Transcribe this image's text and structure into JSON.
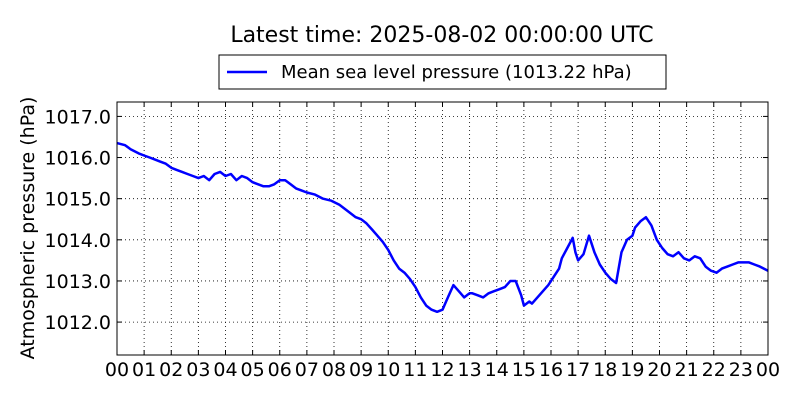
{
  "chart_data": {
    "type": "line",
    "title": "Latest time: 2025-08-02 00:00:00 UTC",
    "xlabel": "",
    "ylabel": "Atmospheric pressure (hPa)",
    "x_ticks": [
      "00",
      "01",
      "02",
      "03",
      "04",
      "05",
      "06",
      "07",
      "08",
      "09",
      "10",
      "11",
      "12",
      "13",
      "14",
      "15",
      "16",
      "17",
      "18",
      "19",
      "20",
      "21",
      "22",
      "23",
      "00"
    ],
    "y_ticks": [
      "1012.0",
      "1013.0",
      "1014.0",
      "1015.0",
      "1016.0",
      "1017.0"
    ],
    "xlim": [
      0,
      24
    ],
    "ylim": [
      1011.2,
      1017.35
    ],
    "grid": true,
    "legend_position": "top-center (above plot)",
    "series": [
      {
        "name": "Mean sea level pressure (1013.22 hPa)",
        "color": "#0000ff",
        "x": [
          0.0,
          0.3,
          0.5,
          0.8,
          1.0,
          1.2,
          1.4,
          1.6,
          1.8,
          2.0,
          2.2,
          2.4,
          2.6,
          2.8,
          3.0,
          3.2,
          3.4,
          3.6,
          3.8,
          4.0,
          4.2,
          4.4,
          4.6,
          4.8,
          5.0,
          5.2,
          5.4,
          5.6,
          5.8,
          6.0,
          6.2,
          6.4,
          6.6,
          6.8,
          7.0,
          7.3,
          7.6,
          7.9,
          8.2,
          8.5,
          8.8,
          9.0,
          9.2,
          9.4,
          9.6,
          9.8,
          10.0,
          10.2,
          10.4,
          10.6,
          10.8,
          11.0,
          11.2,
          11.4,
          11.6,
          11.8,
          12.0,
          12.2,
          12.4,
          12.6,
          12.8,
          12.9,
          13.0,
          13.1,
          13.3,
          13.5,
          13.7,
          13.9,
          14.1,
          14.3,
          14.5,
          14.7,
          14.9,
          15.0,
          15.2,
          15.3,
          15.5,
          15.7,
          15.9,
          16.1,
          16.3,
          16.4,
          16.6,
          16.8,
          16.9,
          17.0,
          17.2,
          17.4,
          17.6,
          17.8,
          18.0,
          18.2,
          18.4,
          18.6,
          18.8,
          19.0,
          19.1,
          19.3,
          19.5,
          19.7,
          19.9,
          20.1,
          20.3,
          20.5,
          20.7,
          20.9,
          21.1,
          21.3,
          21.5,
          21.7,
          21.9,
          22.1,
          22.3,
          22.5,
          22.7,
          22.9,
          23.1,
          23.3,
          23.5,
          23.7,
          24.0
        ],
        "y": [
          1016.35,
          1016.3,
          1016.2,
          1016.1,
          1016.05,
          1016.0,
          1015.95,
          1015.9,
          1015.85,
          1015.75,
          1015.7,
          1015.65,
          1015.6,
          1015.55,
          1015.5,
          1015.55,
          1015.45,
          1015.6,
          1015.65,
          1015.55,
          1015.6,
          1015.45,
          1015.55,
          1015.5,
          1015.4,
          1015.35,
          1015.3,
          1015.3,
          1015.35,
          1015.45,
          1015.45,
          1015.35,
          1015.25,
          1015.2,
          1015.15,
          1015.1,
          1015.0,
          1014.95,
          1014.85,
          1014.7,
          1014.55,
          1014.5,
          1014.4,
          1014.25,
          1014.1,
          1013.95,
          1013.75,
          1013.5,
          1013.3,
          1013.2,
          1013.05,
          1012.85,
          1012.6,
          1012.4,
          1012.3,
          1012.25,
          1012.3,
          1012.6,
          1012.9,
          1012.75,
          1012.6,
          1012.65,
          1012.7,
          1012.7,
          1012.65,
          1012.6,
          1012.7,
          1012.75,
          1012.8,
          1012.85,
          1013.0,
          1013.0,
          1012.65,
          1012.4,
          1012.5,
          1012.45,
          1012.6,
          1012.75,
          1012.9,
          1013.1,
          1013.3,
          1013.55,
          1013.8,
          1014.05,
          1013.7,
          1013.5,
          1013.65,
          1014.1,
          1013.7,
          1013.4,
          1013.2,
          1013.05,
          1012.95,
          1013.7,
          1014.0,
          1014.1,
          1014.3,
          1014.45,
          1014.55,
          1014.35,
          1014.0,
          1013.8,
          1013.65,
          1013.6,
          1013.7,
          1013.55,
          1013.5,
          1013.6,
          1013.55,
          1013.35,
          1013.25,
          1013.2,
          1013.3,
          1013.35,
          1013.4,
          1013.45,
          1013.45,
          1013.45,
          1013.4,
          1013.35,
          1013.25
        ]
      }
    ]
  }
}
